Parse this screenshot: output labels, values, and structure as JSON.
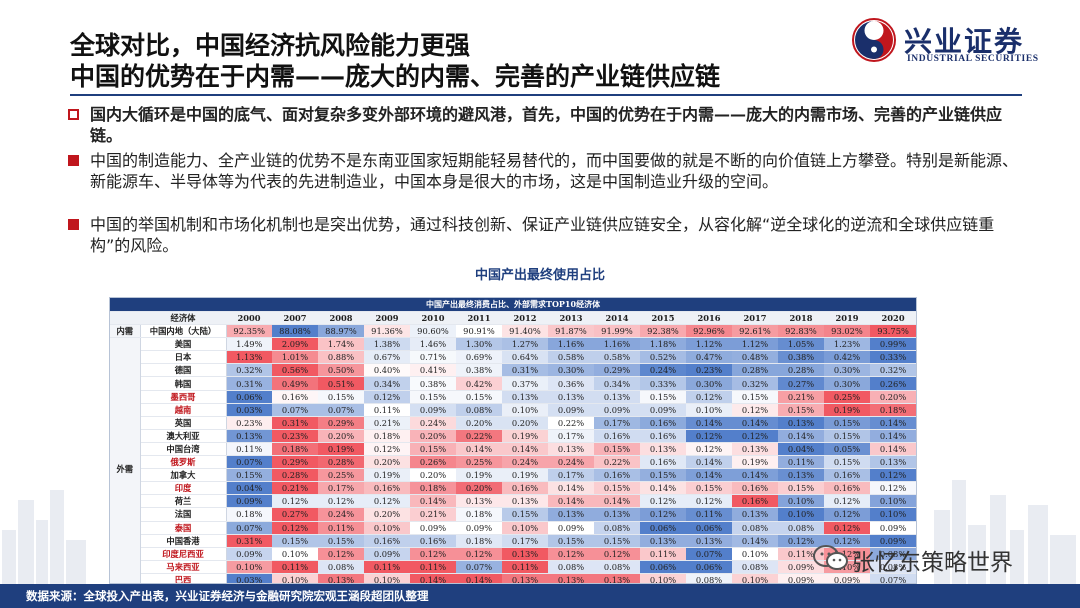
{
  "header": {
    "title_line1": "全球对比，中国经济抗风险能力更强",
    "title_line2": "中国的优势在于内需——庞大的内需、完善的产业链供应链",
    "logo_cn": "兴业证券",
    "logo_en": "INDUSTRIAL SECURITIES"
  },
  "bullets": [
    "国内大循环是中国的底气、面对复杂多变外部环境的避风港，首先，中国的优势在于内需——庞大的内需市场、完善的产业链供应链。",
    "中国的制造能力、全产业链的优势不是东南亚国家短期能轻易替代的，而中国要做的就是不断的向价值链上方攀登。特别是新能源、新能源车、半导体等为代表的先进制造业，中国本身是很大的市场，这是中国制造业升级的空间。",
    "中国的举国机制和市场化机制也是突出优势，通过科技创新、保证产业链供应链安全，从容化解“逆全球化的逆流和全球供应链重构”的风险。"
  ],
  "caption": "中国产出最终使用占比",
  "table": {
    "title": "中国产出最终消费占比、外部需求TOP10经济体",
    "col0": "",
    "col1": "经济体",
    "years": [
      "2000",
      "2007",
      "2008",
      "2009",
      "2010",
      "2011",
      "2012",
      "2013",
      "2014",
      "2015",
      "2016",
      "2017",
      "2018",
      "2019",
      "2020"
    ],
    "groups": {
      "domestic": "内需",
      "foreign": "外需"
    },
    "rows": [
      {
        "name": "中国内地（大陆）",
        "group": "domestic",
        "hl": false,
        "values": [
          "92.35%",
          "88.08%",
          "88.97%",
          "91.36%",
          "90.60%",
          "90.91%",
          "91.40%",
          "91.87%",
          "91.99%",
          "92.38%",
          "92.96%",
          "92.61%",
          "92.83%",
          "93.02%",
          "93.75%"
        ]
      },
      {
        "name": "美国",
        "group": "foreign",
        "hl": false,
        "values": [
          "1.49%",
          "2.09%",
          "1.74%",
          "1.38%",
          "1.46%",
          "1.30%",
          "1.27%",
          "1.16%",
          "1.16%",
          "1.18%",
          "1.12%",
          "1.12%",
          "1.05%",
          "1.23%",
          "0.99%"
        ]
      },
      {
        "name": "日本",
        "group": "foreign",
        "hl": false,
        "values": [
          "1.13%",
          "1.01%",
          "0.88%",
          "0.67%",
          "0.71%",
          "0.69%",
          "0.64%",
          "0.58%",
          "0.58%",
          "0.52%",
          "0.47%",
          "0.48%",
          "0.38%",
          "0.42%",
          "0.33%"
        ]
      },
      {
        "name": "德国",
        "group": "foreign",
        "hl": false,
        "values": [
          "0.32%",
          "0.56%",
          "0.50%",
          "0.40%",
          "0.41%",
          "0.38%",
          "0.31%",
          "0.30%",
          "0.29%",
          "0.24%",
          "0.23%",
          "0.28%",
          "0.28%",
          "0.30%",
          "0.32%"
        ]
      },
      {
        "name": "韩国",
        "group": "foreign",
        "hl": false,
        "values": [
          "0.31%",
          "0.49%",
          "0.51%",
          "0.34%",
          "0.38%",
          "0.42%",
          "0.37%",
          "0.36%",
          "0.34%",
          "0.33%",
          "0.30%",
          "0.32%",
          "0.27%",
          "0.30%",
          "0.26%"
        ]
      },
      {
        "name": "墨西哥",
        "group": "foreign",
        "hl": true,
        "values": [
          "0.06%",
          "0.16%",
          "0.15%",
          "0.12%",
          "0.15%",
          "0.15%",
          "0.13%",
          "0.13%",
          "0.13%",
          "0.15%",
          "0.12%",
          "0.15%",
          "0.21%",
          "0.25%",
          "0.20%"
        ]
      },
      {
        "name": "越南",
        "group": "foreign",
        "hl": true,
        "values": [
          "0.03%",
          "0.07%",
          "0.07%",
          "0.11%",
          "0.09%",
          "0.08%",
          "0.10%",
          "0.09%",
          "0.09%",
          "0.09%",
          "0.10%",
          "0.12%",
          "0.15%",
          "0.19%",
          "0.18%"
        ]
      },
      {
        "name": "英国",
        "group": "foreign",
        "hl": false,
        "values": [
          "0.23%",
          "0.31%",
          "0.29%",
          "0.21%",
          "0.24%",
          "0.20%",
          "0.20%",
          "0.22%",
          "0.17%",
          "0.16%",
          "0.14%",
          "0.14%",
          "0.13%",
          "0.15%",
          "0.14%"
        ]
      },
      {
        "name": "澳大利亚",
        "group": "foreign",
        "hl": false,
        "values": [
          "0.13%",
          "0.23%",
          "0.20%",
          "0.18%",
          "0.20%",
          "0.22%",
          "0.19%",
          "0.17%",
          "0.16%",
          "0.16%",
          "0.12%",
          "0.12%",
          "0.14%",
          "0.15%",
          "0.14%"
        ]
      },
      {
        "name": "中国台湾",
        "group": "foreign",
        "hl": false,
        "values": [
          "0.11%",
          "0.18%",
          "0.19%",
          "0.12%",
          "0.15%",
          "0.14%",
          "0.14%",
          "0.13%",
          "0.15%",
          "0.13%",
          "0.12%",
          "0.13%",
          "0.04%",
          "0.05%",
          "0.14%"
        ]
      },
      {
        "name": "俄罗斯",
        "group": "foreign",
        "hl": true,
        "values": [
          "0.07%",
          "0.29%",
          "0.28%",
          "0.20%",
          "0.26%",
          "0.25%",
          "0.24%",
          "0.24%",
          "0.22%",
          "0.16%",
          "0.14%",
          "0.19%",
          "0.11%",
          "0.15%",
          "0.13%"
        ]
      },
      {
        "name": "加拿大",
        "group": "foreign",
        "hl": false,
        "values": [
          "0.15%",
          "0.28%",
          "0.25%",
          "0.19%",
          "0.20%",
          "0.19%",
          "0.19%",
          "0.17%",
          "0.16%",
          "0.15%",
          "0.14%",
          "0.14%",
          "0.13%",
          "0.16%",
          "0.12%"
        ]
      },
      {
        "name": "印度",
        "group": "foreign",
        "hl": true,
        "values": [
          "0.04%",
          "0.21%",
          "0.17%",
          "0.16%",
          "0.18%",
          "0.20%",
          "0.16%",
          "0.14%",
          "0.15%",
          "0.14%",
          "0.15%",
          "0.16%",
          "0.15%",
          "0.16%",
          "0.12%"
        ]
      },
      {
        "name": "荷兰",
        "group": "foreign",
        "hl": false,
        "values": [
          "0.09%",
          "0.12%",
          "0.12%",
          "0.12%",
          "0.14%",
          "0.13%",
          "0.13%",
          "0.14%",
          "0.14%",
          "0.12%",
          "0.12%",
          "0.16%",
          "0.10%",
          "0.12%",
          "0.10%"
        ]
      },
      {
        "name": "法国",
        "group": "foreign",
        "hl": false,
        "values": [
          "0.18%",
          "0.27%",
          "0.24%",
          "0.20%",
          "0.21%",
          "0.18%",
          "0.15%",
          "0.13%",
          "0.13%",
          "0.12%",
          "0.11%",
          "0.13%",
          "0.10%",
          "0.12%",
          "0.10%"
        ]
      },
      {
        "name": "泰国",
        "group": "foreign",
        "hl": true,
        "values": [
          "0.07%",
          "0.12%",
          "0.11%",
          "0.10%",
          "0.09%",
          "0.09%",
          "0.10%",
          "0.09%",
          "0.08%",
          "0.06%",
          "0.06%",
          "0.08%",
          "0.08%",
          "0.12%",
          "0.09%"
        ]
      },
      {
        "name": "中国香港",
        "group": "foreign",
        "hl": false,
        "values": [
          "0.31%",
          "0.15%",
          "0.15%",
          "0.16%",
          "0.16%",
          "0.18%",
          "0.17%",
          "0.15%",
          "0.15%",
          "0.13%",
          "0.13%",
          "0.14%",
          "0.12%",
          "0.12%",
          "0.09%"
        ]
      },
      {
        "name": "印度尼西亚",
        "group": "foreign",
        "hl": true,
        "values": [
          "0.09%",
          "0.10%",
          "0.12%",
          "0.09%",
          "0.12%",
          "0.12%",
          "0.13%",
          "0.12%",
          "0.12%",
          "0.11%",
          "0.07%",
          "0.10%",
          "0.11%",
          "0.12%",
          "0.08%"
        ]
      },
      {
        "name": "马来西亚",
        "group": "foreign",
        "hl": true,
        "values": [
          "0.10%",
          "0.11%",
          "0.08%",
          "0.11%",
          "0.11%",
          "0.07%",
          "0.11%",
          "0.08%",
          "0.08%",
          "0.06%",
          "0.06%",
          "0.08%",
          "0.09%",
          "0.10%",
          "0.08%"
        ]
      },
      {
        "name": "巴西",
        "group": "foreign",
        "hl": true,
        "values": [
          "0.03%",
          "0.10%",
          "0.13%",
          "0.10%",
          "0.14%",
          "0.14%",
          "0.13%",
          "0.13%",
          "0.13%",
          "0.10%",
          "0.08%",
          "0.10%",
          "0.09%",
          "0.09%",
          "0.07%"
        ]
      },
      {
        "name": "意大利",
        "group": "foreign",
        "hl": false,
        "values": [
          "0.11%",
          "0.20%",
          "0.19%",
          "0.14%",
          "0.17%",
          "0.15%",
          "0.11%",
          "0.09%",
          "0.10%",
          "0.09%",
          "0.08%",
          "0.09%",
          "0.08%",
          "0.09%",
          "0.08%"
        ]
      }
    ],
    "colors": {
      "high": "#f0505a",
      "mid": "#ffffff",
      "low": "#4a78c8"
    }
  },
  "watermark": "张忆东策略世界",
  "footer": {
    "source": "数据来源：全球投入产出表，兴业证券经济与金融研究院宏观王涵段超团队整理"
  }
}
